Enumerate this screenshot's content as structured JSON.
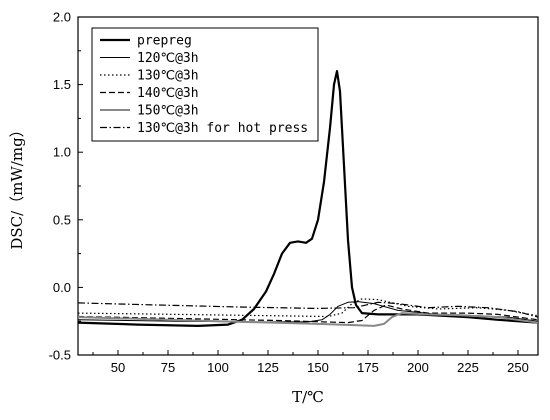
{
  "chart_data": {
    "type": "line",
    "xlabel": "T/℃",
    "ylabel": "DSC/（mW/mg）",
    "xlim": [
      30,
      260
    ],
    "ylim": [
      -0.5,
      2.0
    ],
    "x_ticks": [
      50,
      75,
      100,
      125,
      150,
      175,
      200,
      225,
      250
    ],
    "y_ticks": [
      -0.5,
      0.0,
      0.5,
      1.0,
      1.5,
      2.0
    ],
    "y_tick_labels": [
      "-0.5",
      "0.0",
      "0.5",
      "1.0",
      "1.5",
      "2.0"
    ],
    "legend_position": "top-left",
    "series": [
      {
        "name": "prepreg",
        "color": "#000000",
        "style": "solid-thick",
        "points": [
          [
            30,
            -0.26
          ],
          [
            60,
            -0.275
          ],
          [
            90,
            -0.285
          ],
          [
            105,
            -0.275
          ],
          [
            112,
            -0.24
          ],
          [
            118,
            -0.16
          ],
          [
            124,
            -0.03
          ],
          [
            128,
            0.1
          ],
          [
            132,
            0.25
          ],
          [
            136,
            0.33
          ],
          [
            140,
            0.34
          ],
          [
            144,
            0.33
          ],
          [
            147,
            0.36
          ],
          [
            150,
            0.5
          ],
          [
            153,
            0.78
          ],
          [
            156,
            1.18
          ],
          [
            158,
            1.5
          ],
          [
            159.5,
            1.6
          ],
          [
            161,
            1.45
          ],
          [
            163,
            0.9
          ],
          [
            165,
            0.35
          ],
          [
            167,
            0.0
          ],
          [
            169,
            -0.13
          ],
          [
            172,
            -0.19
          ],
          [
            180,
            -0.2
          ],
          [
            200,
            -0.2
          ],
          [
            225,
            -0.22
          ],
          [
            240,
            -0.24
          ],
          [
            260,
            -0.26
          ]
        ]
      },
      {
        "name": "120℃@3h",
        "color": "#000000",
        "style": "solid-thin",
        "points": [
          [
            30,
            -0.24
          ],
          [
            80,
            -0.25
          ],
          [
            120,
            -0.255
          ],
          [
            145,
            -0.255
          ],
          [
            152,
            -0.24
          ],
          [
            156,
            -0.2
          ],
          [
            160,
            -0.14
          ],
          [
            165,
            -0.11
          ],
          [
            170,
            -0.105
          ],
          [
            178,
            -0.12
          ],
          [
            190,
            -0.17
          ],
          [
            210,
            -0.2
          ],
          [
            230,
            -0.21
          ],
          [
            245,
            -0.22
          ],
          [
            260,
            -0.25
          ]
        ]
      },
      {
        "name": "130℃@3h",
        "color": "#000000",
        "style": "dotted",
        "points": [
          [
            30,
            -0.19
          ],
          [
            80,
            -0.2
          ],
          [
            130,
            -0.21
          ],
          [
            155,
            -0.215
          ],
          [
            162,
            -0.19
          ],
          [
            167,
            -0.12
          ],
          [
            172,
            -0.085
          ],
          [
            180,
            -0.09
          ],
          [
            195,
            -0.14
          ],
          [
            210,
            -0.16
          ],
          [
            230,
            -0.15
          ],
          [
            245,
            -0.17
          ],
          [
            260,
            -0.21
          ]
        ]
      },
      {
        "name": "140℃@3h",
        "color": "#000000",
        "style": "dashed",
        "points": [
          [
            30,
            -0.215
          ],
          [
            80,
            -0.23
          ],
          [
            130,
            -0.245
          ],
          [
            165,
            -0.26
          ],
          [
            172,
            -0.245
          ],
          [
            178,
            -0.17
          ],
          [
            184,
            -0.13
          ],
          [
            192,
            -0.16
          ],
          [
            205,
            -0.19
          ],
          [
            225,
            -0.19
          ],
          [
            240,
            -0.2
          ],
          [
            260,
            -0.24
          ]
        ]
      },
      {
        "name": "150℃@3h",
        "color": "#888888",
        "style": "solid-gray",
        "points": [
          [
            30,
            -0.22
          ],
          [
            100,
            -0.25
          ],
          [
            150,
            -0.27
          ],
          [
            170,
            -0.28
          ],
          [
            178,
            -0.285
          ],
          [
            183,
            -0.27
          ],
          [
            187,
            -0.22
          ],
          [
            192,
            -0.19
          ],
          [
            205,
            -0.2
          ],
          [
            220,
            -0.205
          ],
          [
            240,
            -0.22
          ],
          [
            260,
            -0.26
          ]
        ]
      },
      {
        "name": "130℃@3h for hot press",
        "color": "#000000",
        "style": "dashdot",
        "points": [
          [
            30,
            -0.115
          ],
          [
            70,
            -0.13
          ],
          [
            110,
            -0.145
          ],
          [
            150,
            -0.155
          ],
          [
            168,
            -0.15
          ],
          [
            180,
            -0.11
          ],
          [
            190,
            -0.12
          ],
          [
            205,
            -0.15
          ],
          [
            220,
            -0.14
          ],
          [
            235,
            -0.15
          ],
          [
            250,
            -0.18
          ],
          [
            260,
            -0.22
          ]
        ]
      }
    ]
  }
}
